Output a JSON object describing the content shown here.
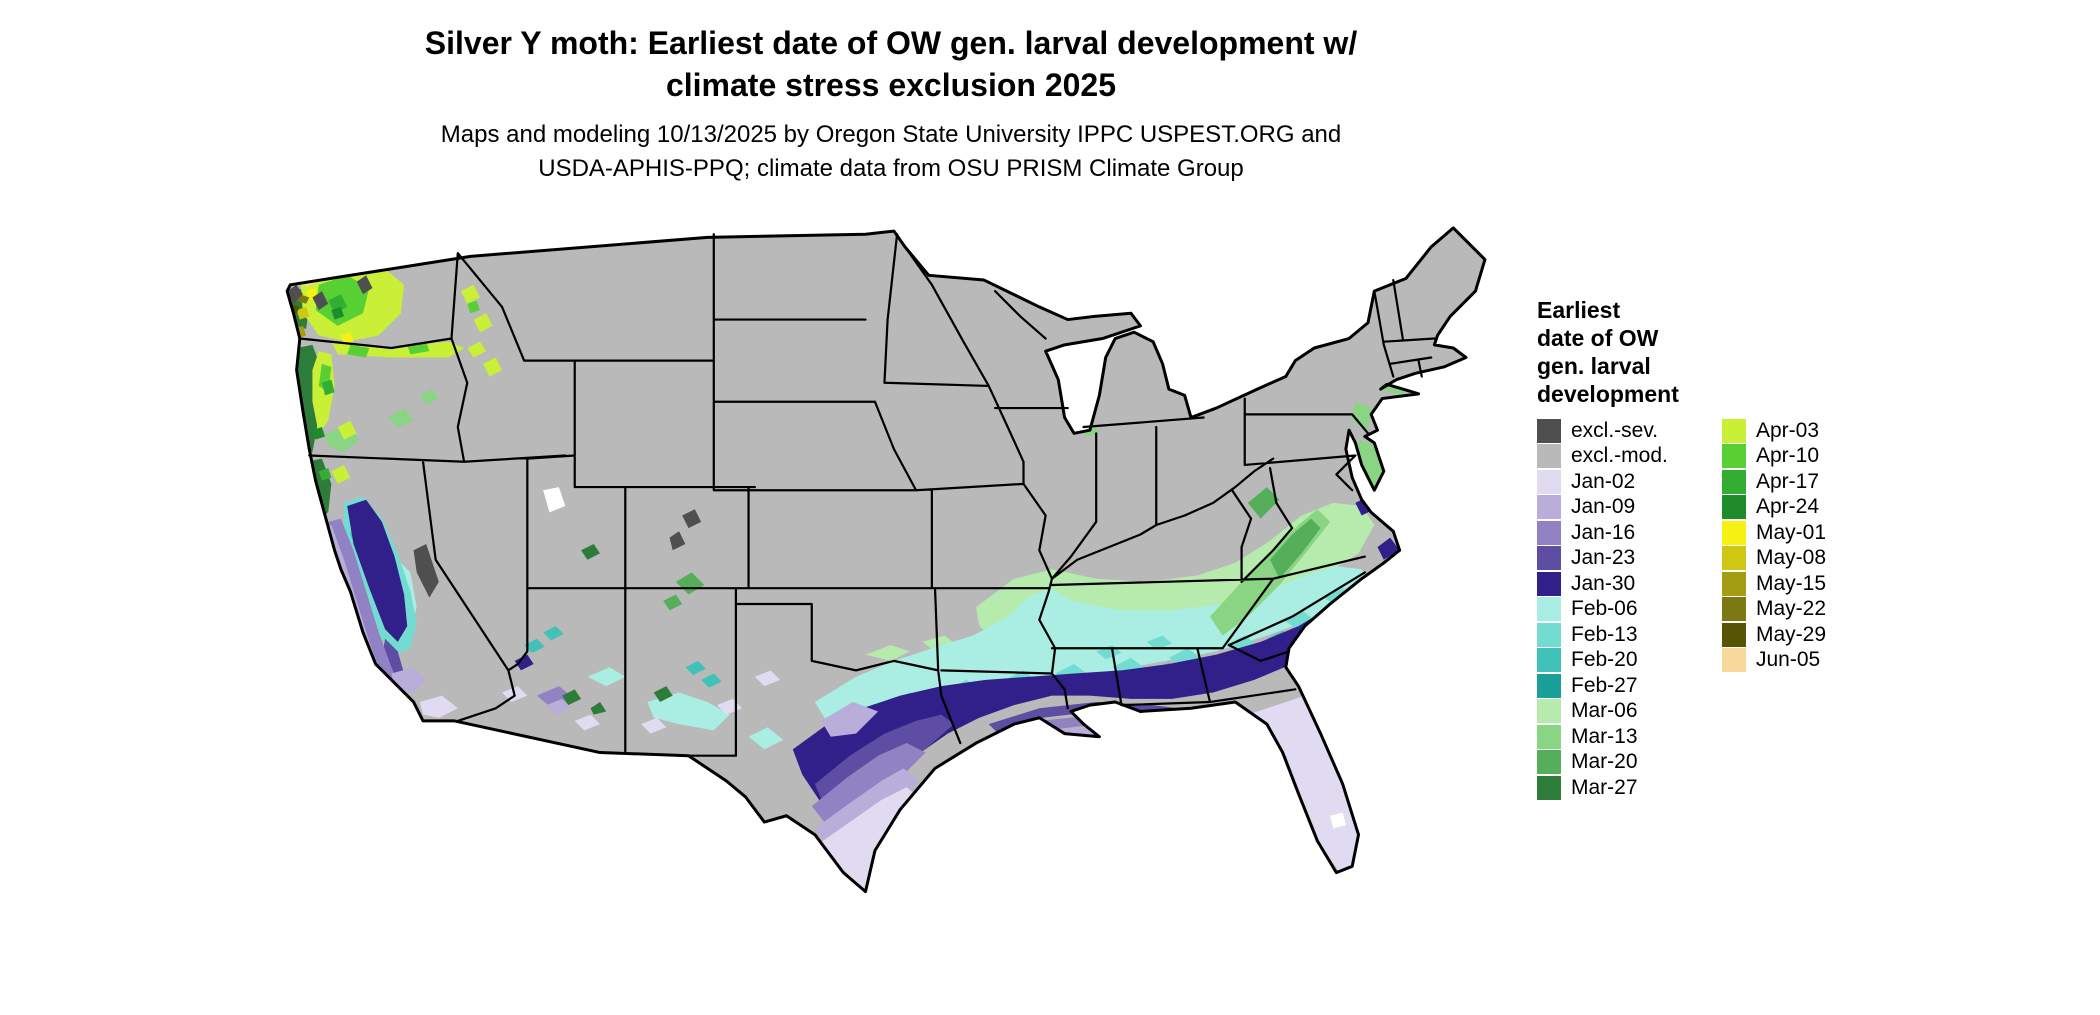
{
  "title": {
    "lines": [
      "Silver Y moth: Earliest date of OW gen. larval development w/",
      "climate stress exclusion 2025"
    ]
  },
  "subtitle": {
    "lines": [
      "Maps and modeling 10/13/2025 by Oregon State University IPPC USPEST.ORG and",
      "USDA-APHIS-PPQ; climate data from OSU PRISM Climate Group"
    ]
  },
  "legend": {
    "title_lines": [
      "Earliest",
      "date of OW",
      "gen. larval",
      "development"
    ],
    "column1": [
      {
        "label": "excl.-sev.",
        "color_key": "excl_sev"
      },
      {
        "label": "excl.-mod.",
        "color_key": "excl_mod"
      },
      {
        "label": "Jan-02",
        "color_key": "jan02"
      },
      {
        "label": "Jan-09",
        "color_key": "jan09"
      },
      {
        "label": "Jan-16",
        "color_key": "jan16"
      },
      {
        "label": "Jan-23",
        "color_key": "jan23"
      },
      {
        "label": "Jan-30",
        "color_key": "jan30"
      },
      {
        "label": "Feb-06",
        "color_key": "feb06"
      },
      {
        "label": "Feb-13",
        "color_key": "feb13"
      },
      {
        "label": "Feb-20",
        "color_key": "feb20"
      },
      {
        "label": "Feb-27",
        "color_key": "feb27"
      },
      {
        "label": "Mar-06",
        "color_key": "mar06"
      },
      {
        "label": "Mar-13",
        "color_key": "mar13"
      },
      {
        "label": "Mar-20",
        "color_key": "mar20"
      },
      {
        "label": "Mar-27",
        "color_key": "mar27"
      }
    ],
    "column2": [
      {
        "label": "Apr-03",
        "color_key": "apr03"
      },
      {
        "label": "Apr-10",
        "color_key": "apr10"
      },
      {
        "label": "Apr-17",
        "color_key": "apr17"
      },
      {
        "label": "Apr-24",
        "color_key": "apr24"
      },
      {
        "label": "May-01",
        "color_key": "may01"
      },
      {
        "label": "May-08",
        "color_key": "may08"
      },
      {
        "label": "May-15",
        "color_key": "may15"
      },
      {
        "label": "May-22",
        "color_key": "may22"
      },
      {
        "label": "May-29",
        "color_key": "may29"
      },
      {
        "label": "Jun-05",
        "color_key": "jun05"
      }
    ]
  },
  "colors": {
    "excl_sev": "#4f4f4f",
    "excl_mod": "#b9b9b9",
    "jan02": "#e0dbf0",
    "jan09": "#b9add9",
    "jan16": "#9182c4",
    "jan23": "#5d4da3",
    "jan30": "#311f8a",
    "feb06": "#a9ede3",
    "feb13": "#73dcd1",
    "feb20": "#40c2b9",
    "feb27": "#1aa098",
    "mar06": "#b7ebad",
    "mar13": "#89d583",
    "mar20": "#55af5a",
    "mar27": "#2d7c39",
    "apr03": "#c9ef37",
    "apr10": "#58d033",
    "apr17": "#33ad32",
    "apr24": "#1e8c2b",
    "may01": "#f6f112",
    "may08": "#cfc713",
    "may15": "#a39d13",
    "may22": "#7c7915",
    "may29": "#555505",
    "jun05": "#f9d99b",
    "water": "#ffffff",
    "background": "#ffffff"
  },
  "map": {
    "type": "choropleth",
    "region": "Continental United States",
    "summary": "Northern and interior states shown excluded (gray, excl.-mod.); earliest larval development dates band northward from Jan-02 (lavender, south Texas / Florida / coasts) through Jan-30 (dark indigo Gulf belt), Feb (teal band), Mar (green fringe and Appalachians / Pacific coast), with Apr-May-Jun colors in the Pacific Northwest."
  }
}
